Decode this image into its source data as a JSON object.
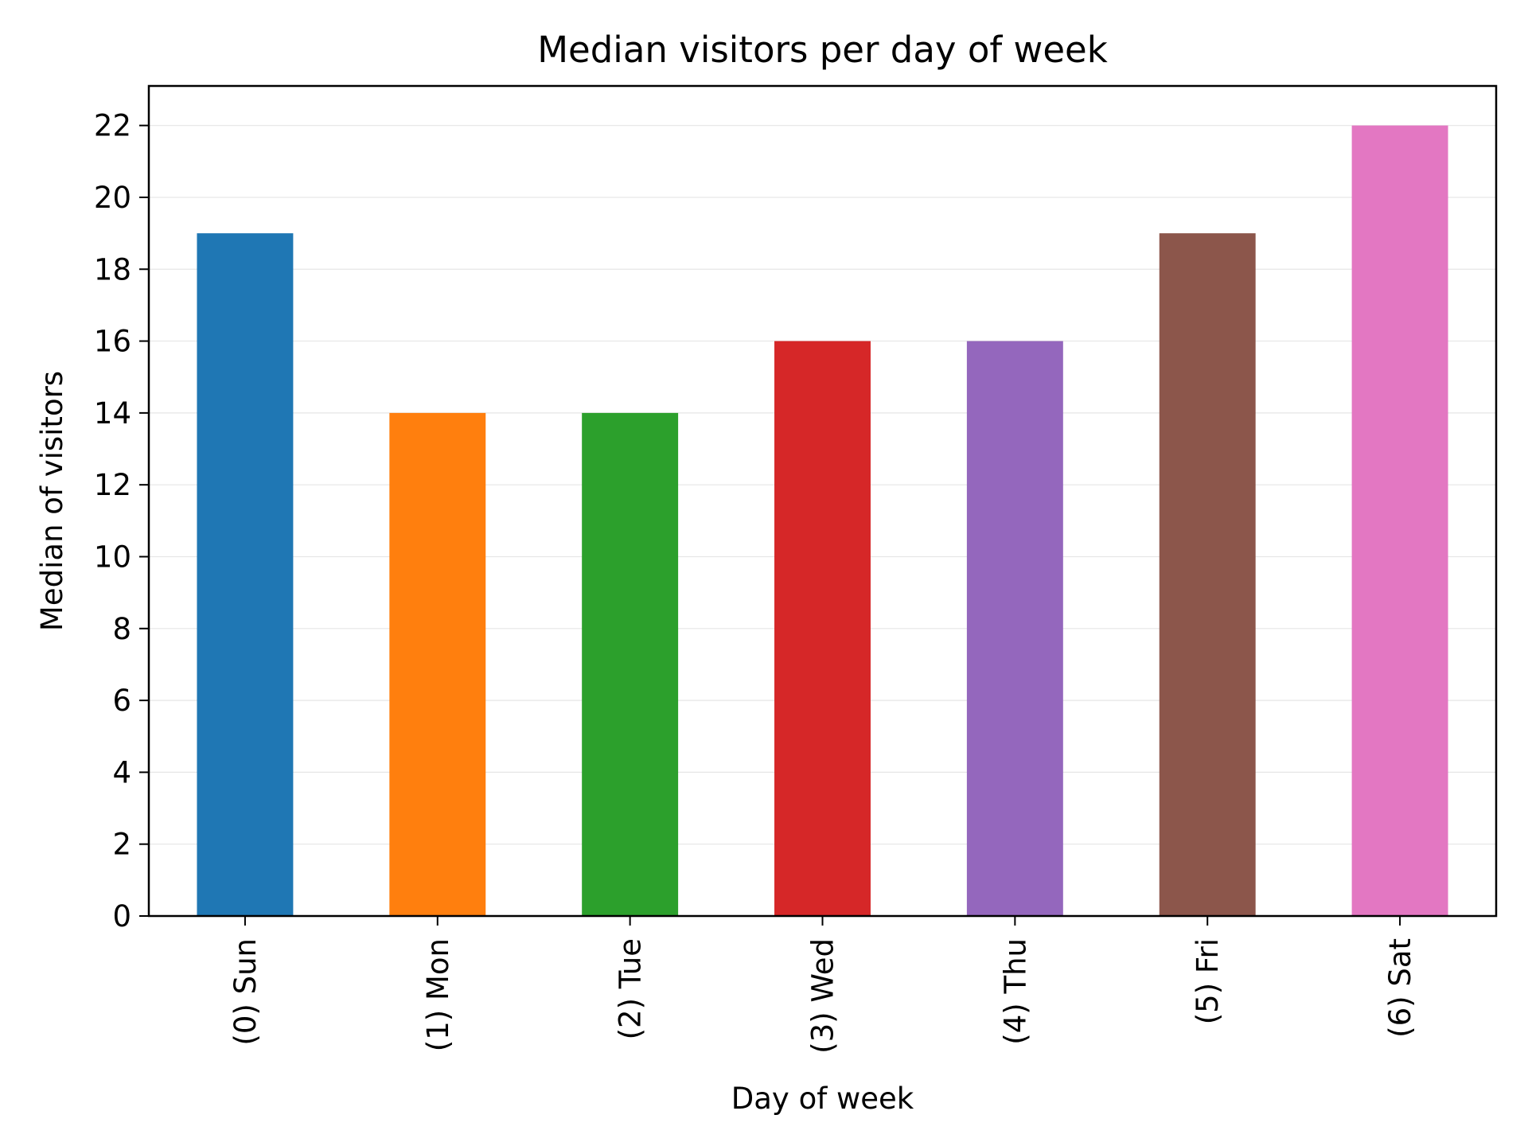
{
  "chart_data": {
    "type": "bar",
    "title": "Median visitors per day of week",
    "xlabel": "Day of week",
    "ylabel": "Median of visitors",
    "categories": [
      "(0) Sun",
      "(1) Mon",
      "(2) Tue",
      "(3) Wed",
      "(4) Thu",
      "(5) Fri",
      "(6) Sat"
    ],
    "values": [
      19,
      14,
      14,
      16,
      16,
      19,
      22
    ],
    "colors": [
      "#1f77b4",
      "#ff7f0e",
      "#2ca02c",
      "#d62728",
      "#9467bd",
      "#8c564b",
      "#e377c2"
    ],
    "ylim": [
      0,
      23.1
    ],
    "yticks": [
      0,
      2,
      4,
      6,
      8,
      10,
      12,
      14,
      16,
      18,
      20,
      22
    ],
    "grid": true,
    "legend": false
  }
}
